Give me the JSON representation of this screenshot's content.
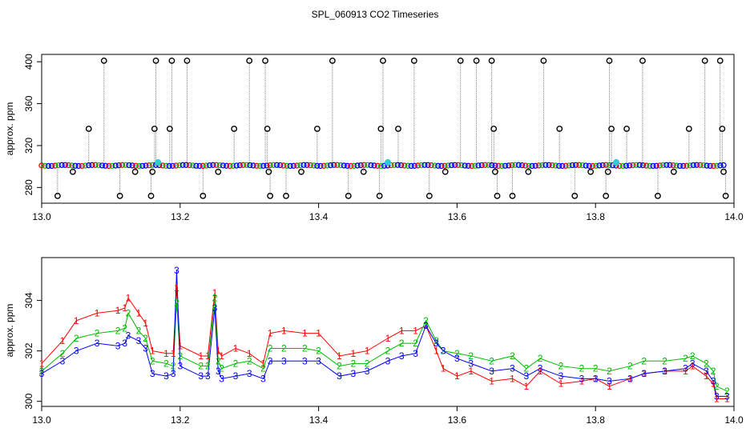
{
  "figure": {
    "title": "SPL_060913  CO2 Timeseries"
  },
  "colors": {
    "background": "#ffffff",
    "axis": "#000000",
    "spike_line": "#7f7f7f",
    "outlier": "#000000",
    "series1": "#ff0000",
    "series2": "#00bb00",
    "series3": "#0000ff",
    "highlight": "#33cccc"
  },
  "chart_data": [
    {
      "type": "scatter",
      "title": "",
      "xlabel": "",
      "ylabel": "approx. ppm",
      "xlim": [
        13.0,
        14.0
      ],
      "ylim": [
        265,
        407
      ],
      "x_ticks": [
        13.0,
        13.2,
        13.4,
        13.6,
        13.8,
        14.0
      ],
      "x_tick_labels": [
        "13.0",
        "13.2",
        "13.4",
        "13.6",
        "13.8",
        "14.0"
      ],
      "y_ticks": [
        280,
        320,
        360,
        400
      ],
      "y_tick_labels": [
        "280",
        "320",
        "360",
        "400"
      ],
      "baseline": {
        "x_start": 13.0,
        "x_end": 13.985,
        "y": 301
      },
      "outliers": {
        "x": [
          13.023,
          13.045,
          13.068,
          13.09,
          13.113,
          13.135,
          13.158,
          13.16,
          13.163,
          13.165,
          13.185,
          13.188,
          13.21,
          13.233,
          13.255,
          13.278,
          13.3,
          13.323,
          13.326,
          13.328,
          13.33,
          13.353,
          13.375,
          13.398,
          13.42,
          13.443,
          13.465,
          13.488,
          13.49,
          13.493,
          13.515,
          13.538,
          13.56,
          13.583,
          13.605,
          13.628,
          13.65,
          13.653,
          13.655,
          13.658,
          13.68,
          13.703,
          13.725,
          13.748,
          13.77,
          13.793,
          13.815,
          13.818,
          13.82,
          13.823,
          13.845,
          13.868,
          13.89,
          13.913,
          13.935,
          13.958,
          13.98,
          13.983,
          13.985,
          13.988
        ],
        "y": [
          272,
          295,
          336,
          401,
          272,
          295,
          272,
          295,
          336,
          401,
          336,
          401,
          401,
          272,
          295,
          336,
          401,
          401,
          336,
          295,
          272,
          272,
          295,
          336,
          401,
          272,
          295,
          272,
          336,
          401,
          336,
          401,
          272,
          295,
          401,
          401,
          401,
          336,
          295,
          272,
          272,
          295,
          401,
          336,
          272,
          295,
          272,
          295,
          401,
          336,
          336,
          401,
          272,
          295,
          336,
          401,
          401,
          336,
          295,
          272
        ]
      },
      "highlights": {
        "x": [
          13.168,
          13.5,
          13.83
        ],
        "y": [
          304,
          304,
          304
        ]
      }
    },
    {
      "type": "line",
      "title": "",
      "xlabel": "",
      "ylabel": "approx. ppm",
      "xlim": [
        13.0,
        14.0
      ],
      "ylim": [
        299.8,
        305.7
      ],
      "x_ticks": [
        13.0,
        13.2,
        13.4,
        13.6,
        13.8,
        14.0
      ],
      "x_tick_labels": [
        "13.0",
        "13.2",
        "13.4",
        "13.6",
        "13.8",
        "14.0"
      ],
      "y_ticks": [
        300,
        302,
        304
      ],
      "y_tick_labels": [
        "300",
        "302",
        "304"
      ],
      "series": [
        {
          "name": "1",
          "marker": "1",
          "x": [
            13.0,
            13.03,
            13.05,
            13.08,
            13.11,
            13.12,
            13.125,
            13.14,
            13.15,
            13.16,
            13.18,
            13.19,
            13.195,
            13.2,
            13.23,
            13.24,
            13.25,
            13.255,
            13.26,
            13.28,
            13.3,
            13.32,
            13.33,
            13.35,
            13.38,
            13.4,
            13.43,
            13.45,
            13.47,
            13.5,
            13.52,
            13.54,
            13.555,
            13.57,
            13.58,
            13.6,
            13.62,
            13.65,
            13.68,
            13.7,
            13.72,
            13.75,
            13.78,
            13.8,
            13.82,
            13.85,
            13.87,
            13.9,
            13.93,
            13.94,
            13.96,
            13.97,
            13.975,
            13.99
          ],
          "y": [
            301.5,
            302.4,
            303.2,
            303.5,
            303.6,
            303.7,
            304.1,
            303.5,
            303.1,
            302.0,
            301.9,
            301.9,
            304.5,
            302.2,
            301.8,
            301.8,
            304.3,
            302.0,
            301.8,
            302.1,
            301.9,
            301.5,
            302.7,
            302.8,
            302.7,
            302.7,
            301.8,
            301.9,
            302.0,
            302.5,
            302.8,
            302.8,
            303.0,
            302.0,
            301.3,
            301.0,
            301.2,
            300.8,
            300.9,
            300.6,
            301.2,
            300.7,
            300.8,
            300.9,
            300.6,
            300.9,
            301.1,
            301.2,
            301.2,
            301.4,
            301.0,
            300.7,
            300.1,
            300.1
          ]
        },
        {
          "name": "2",
          "marker": "2",
          "x": [
            13.0,
            13.03,
            13.05,
            13.08,
            13.11,
            13.12,
            13.125,
            13.14,
            13.15,
            13.16,
            13.18,
            13.19,
            13.195,
            13.2,
            13.23,
            13.24,
            13.25,
            13.255,
            13.26,
            13.28,
            13.3,
            13.32,
            13.33,
            13.35,
            13.38,
            13.4,
            13.43,
            13.45,
            13.47,
            13.5,
            13.52,
            13.54,
            13.555,
            13.57,
            13.58,
            13.6,
            13.62,
            13.65,
            13.68,
            13.7,
            13.72,
            13.75,
            13.78,
            13.8,
            13.82,
            13.85,
            13.87,
            13.9,
            13.93,
            13.94,
            13.96,
            13.97,
            13.975,
            13.99
          ],
          "y": [
            301.2,
            301.9,
            302.5,
            302.7,
            302.8,
            302.9,
            303.5,
            302.8,
            302.5,
            301.6,
            301.5,
            301.4,
            303.9,
            301.8,
            301.4,
            301.4,
            304.1,
            301.6,
            301.3,
            301.5,
            301.6,
            301.3,
            302.1,
            302.1,
            302.1,
            302.0,
            301.4,
            301.5,
            301.5,
            302.0,
            302.3,
            302.3,
            303.2,
            302.4,
            302.0,
            301.9,
            301.8,
            301.6,
            301.8,
            301.3,
            301.7,
            301.4,
            301.3,
            301.3,
            301.2,
            301.4,
            301.6,
            301.6,
            301.7,
            301.8,
            301.5,
            301.2,
            300.6,
            300.4
          ]
        },
        {
          "name": "3",
          "marker": "3",
          "x": [
            13.0,
            13.03,
            13.05,
            13.08,
            13.11,
            13.12,
            13.125,
            13.14,
            13.15,
            13.16,
            13.18,
            13.19,
            13.195,
            13.2,
            13.23,
            13.24,
            13.25,
            13.255,
            13.26,
            13.28,
            13.3,
            13.32,
            13.33,
            13.35,
            13.38,
            13.4,
            13.43,
            13.45,
            13.47,
            13.5,
            13.52,
            13.54,
            13.555,
            13.57,
            13.58,
            13.6,
            13.62,
            13.65,
            13.68,
            13.7,
            13.72,
            13.75,
            13.78,
            13.8,
            13.82,
            13.85,
            13.87,
            13.9,
            13.93,
            13.94,
            13.96,
            13.97,
            13.975,
            13.99
          ],
          "y": [
            301.1,
            301.6,
            302.0,
            302.3,
            302.2,
            302.3,
            302.6,
            302.4,
            302.1,
            301.1,
            301.0,
            301.1,
            305.2,
            301.4,
            301.0,
            301.0,
            303.7,
            301.2,
            300.9,
            301.0,
            301.1,
            300.9,
            301.6,
            301.6,
            301.6,
            301.6,
            301.0,
            301.1,
            301.2,
            301.6,
            301.8,
            301.9,
            303.0,
            302.3,
            302.0,
            301.7,
            301.5,
            301.2,
            301.3,
            301.0,
            301.3,
            301.0,
            300.9,
            300.9,
            300.8,
            300.9,
            301.1,
            301.2,
            301.3,
            301.5,
            301.2,
            300.8,
            300.2,
            300.2
          ]
        }
      ]
    }
  ]
}
